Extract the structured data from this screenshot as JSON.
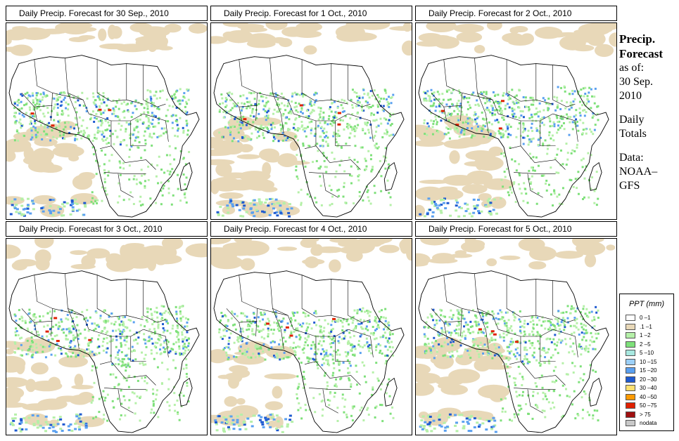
{
  "panels": [
    {
      "title": "Daily Precip. Forecast for  30 Sep., 2010",
      "variant": 0
    },
    {
      "title": "Daily Precip. Forecast for  1 Oct., 2010",
      "variant": 1
    },
    {
      "title": "Daily Precip. Forecast for  2 Oct., 2010",
      "variant": 2
    },
    {
      "title": "Daily Precip. Forecast for  3 Oct., 2010",
      "variant": 3
    },
    {
      "title": "Daily Precip. Forecast for  4 Oct., 2010",
      "variant": 4
    },
    {
      "title": "Daily Precip. Forecast for  5 Oct., 2010",
      "variant": 5
    }
  ],
  "sidebar": {
    "heading_line1": "Precip.",
    "heading_line2": "Forecast",
    "asof": "as of:",
    "date_line1": "30 Sep.",
    "date_line2": "2010",
    "daily_line1": "Daily",
    "daily_line2": "Totals",
    "data_line1": "Data:",
    "data_line2": "NOAA–",
    "data_line3": "GFS"
  },
  "legend": {
    "title": "PPT (mm)",
    "items": [
      {
        "label": "0 –1",
        "color": "#ffffff"
      },
      {
        "label": ".1 –1",
        "color": "#e8d8b8"
      },
      {
        "label": "1 –2",
        "color": "#b5f0a8"
      },
      {
        "label": "2 –5",
        "color": "#7ee07a"
      },
      {
        "label": "5 –10",
        "color": "#a8e8e0"
      },
      {
        "label": "10 –15",
        "color": "#9cd0f8"
      },
      {
        "label": "15 –20",
        "color": "#5aa0f0"
      },
      {
        "label": "20 –30",
        "color": "#1e5ad0"
      },
      {
        "label": "30 –40",
        "color": "#ffe070"
      },
      {
        "label": "40 –50",
        "color": "#ff9a00"
      },
      {
        "label": "50 –75",
        "color": "#e02000"
      },
      {
        "label": "> 75",
        "color": "#a01010"
      },
      {
        "label": "nodata",
        "color": "#c8c8c8"
      }
    ]
  },
  "colors": {
    "dry": "#e8d8b8",
    "light": "#b5f0a8",
    "green": "#7ee07a",
    "blue": "#5aa0f0",
    "dark_blue": "#1e5ad0",
    "red": "#e02000"
  }
}
